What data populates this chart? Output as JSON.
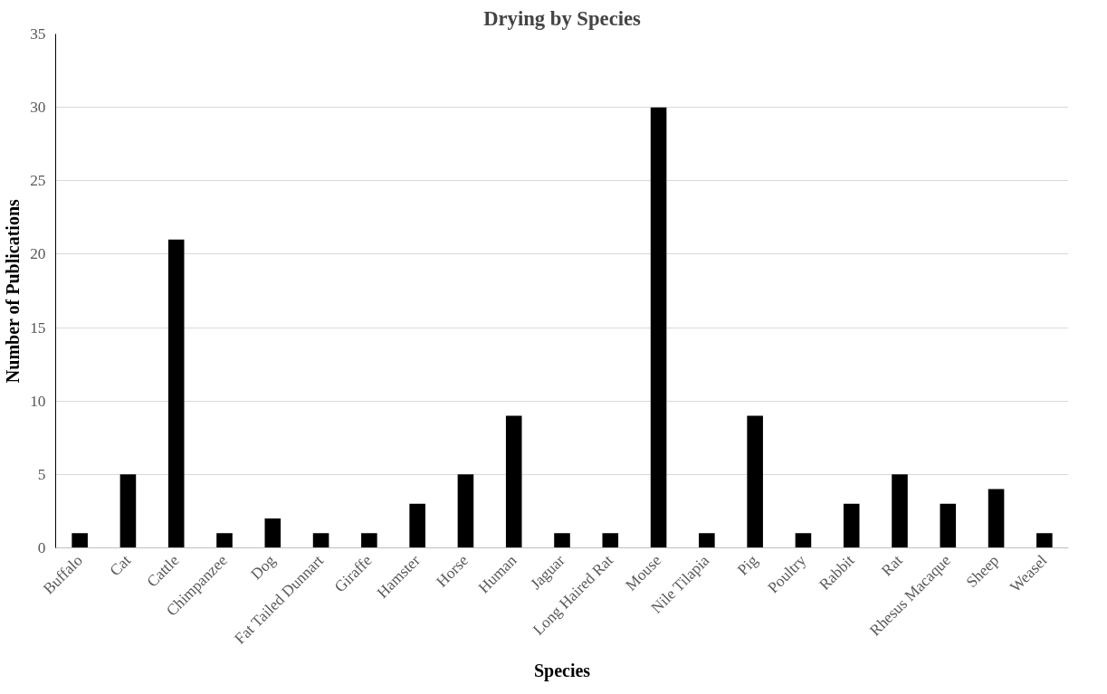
{
  "chart_data": {
    "type": "bar",
    "title": "Drying by Species",
    "xlabel": "Species",
    "ylabel": "Number of Publications",
    "categories": [
      "Buffalo",
      "Cat",
      "Cattle",
      "Chimpanzee",
      "Dog",
      "Fat Tailed Dunnart",
      "Giraffe",
      "Hamster",
      "Horse",
      "Human",
      "Jaguar",
      "Long Haired Rat",
      "Mouse",
      "Nile Tilapia",
      "Pig",
      "Poultry",
      "Rabbit",
      "Rat",
      "Rhesus Macaque",
      "Sheep",
      "Weasel"
    ],
    "values": [
      1,
      5,
      21,
      1,
      2,
      1,
      1,
      3,
      5,
      9,
      1,
      1,
      30,
      1,
      9,
      1,
      3,
      5,
      3,
      4,
      1
    ],
    "color": "#000000",
    "ylim": [
      0,
      35
    ],
    "yticks": [
      0,
      5,
      10,
      15,
      20,
      25,
      30,
      35
    ],
    "grid": "y"
  }
}
